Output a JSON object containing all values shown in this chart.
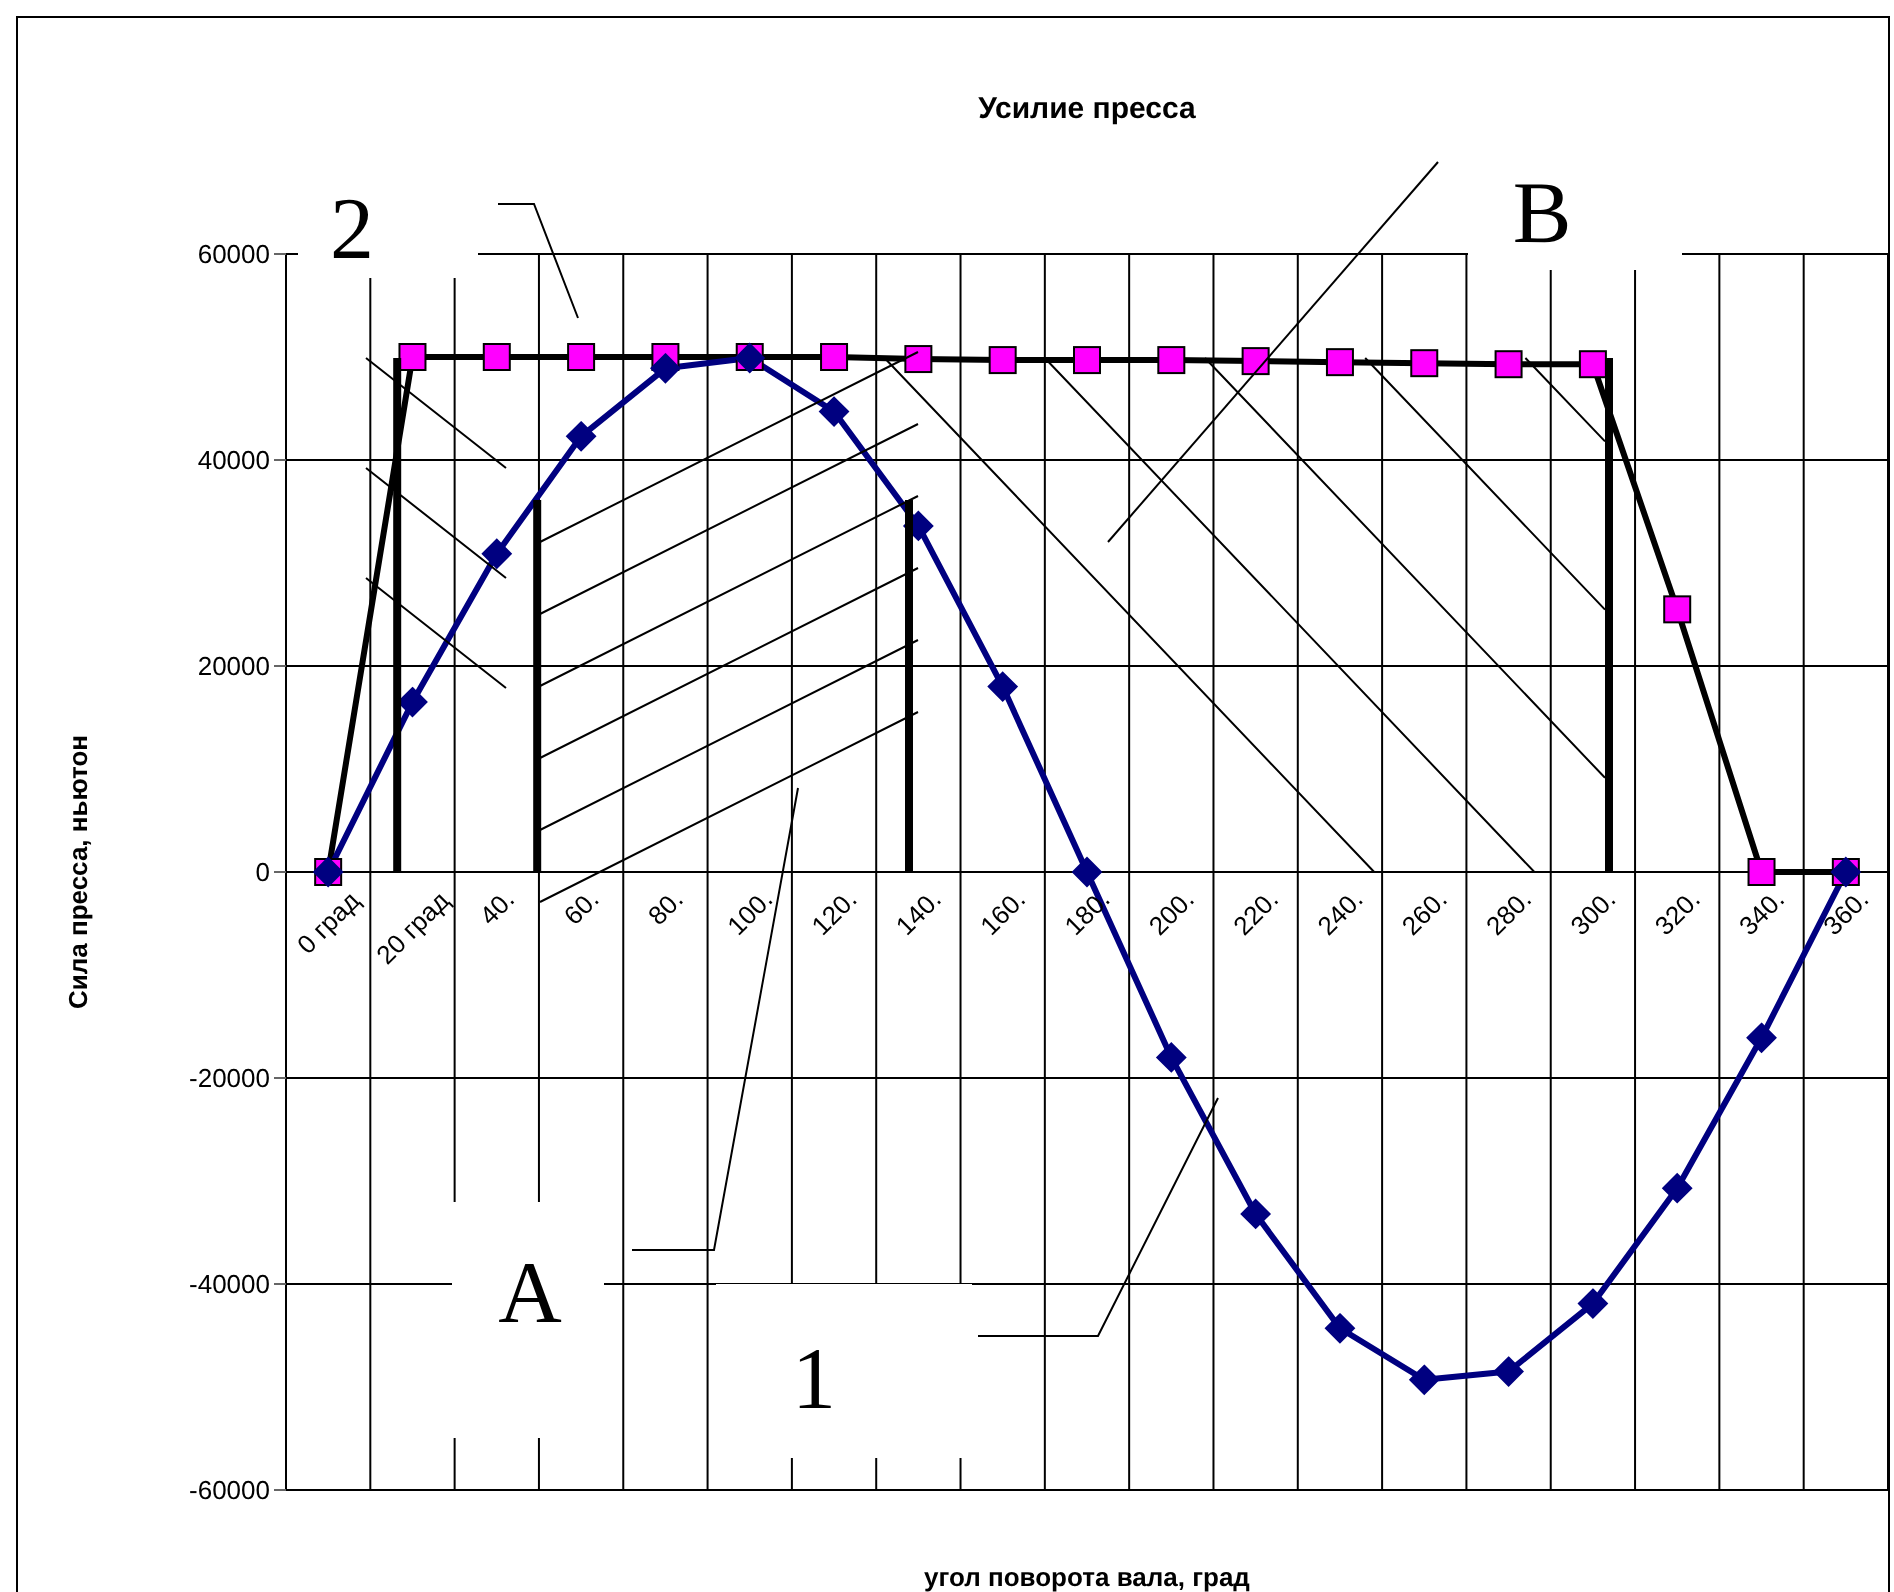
{
  "chart_data": {
    "type": "line",
    "title": "Усилие пресса",
    "xlabel": "угол поворота вала, град",
    "ylabel": "Сила пресса, ньютон",
    "categories": [
      "0 град",
      "20 град",
      "40.",
      "60.",
      "80.",
      "100.",
      "120.",
      "140.",
      "160.",
      "180.",
      "200.",
      "220.",
      "240.",
      "260.",
      "280.",
      "300.",
      "320.",
      "340.",
      "360."
    ],
    "series": [
      {
        "color": "#000080",
        "marker": "diamond",
        "values": [
          0,
          16500,
          30900,
          42300,
          48900,
          49900,
          44700,
          33600,
          18000,
          0,
          -18000,
          -33200,
          -44300,
          -49300,
          -48500,
          -41900,
          -30700,
          -16100,
          0
        ]
      },
      {
        "color": "#000000",
        "marker": "square",
        "colors": [
          "#ff00ff",
          "#ff00ff",
          "#ff00ff",
          "#ff00ff",
          "#ff00ff",
          "#ff00ff",
          "#ff00ff",
          "#ff00ff",
          "#ff00ff",
          "#ff00ff",
          "#ff00ff",
          "#ff00ff",
          "#ff00ff",
          "#ff00ff",
          "#ff00ff",
          "#ff00ff",
          "#ff00ff",
          "#ff00ff",
          "#ff00ff"
        ],
        "values": [
          0,
          50000,
          50000,
          50000,
          50000,
          50000,
          50000,
          49800,
          49700,
          49700,
          49700,
          49600,
          49500,
          49400,
          49300,
          49300,
          25500,
          0,
          0
        ]
      }
    ],
    "ylim": [
      -60000,
      60000
    ],
    "yticks": [
      -60000,
      -40000,
      -20000,
      0,
      20000,
      40000,
      60000
    ],
    "grid": true,
    "legend": false,
    "annotations": [
      "2",
      "B",
      "A",
      "1"
    ]
  }
}
